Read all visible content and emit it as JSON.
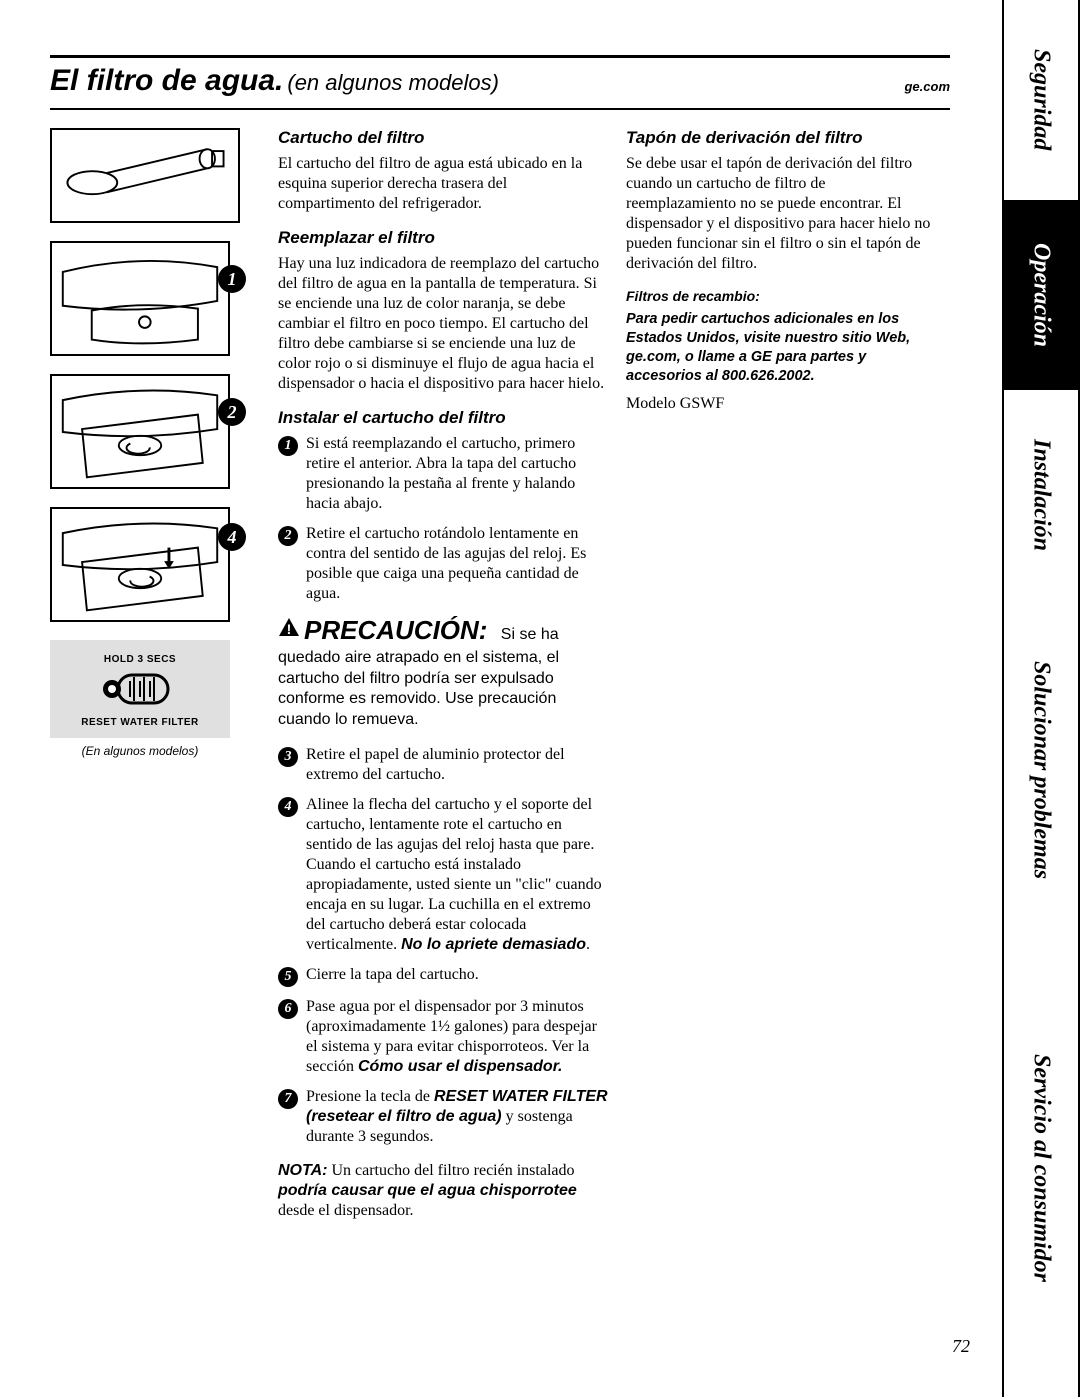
{
  "title": {
    "main": "El filtro de agua.",
    "sub": "(en algunos modelos)",
    "url": "ge.com"
  },
  "tabs": [
    "Seguridad",
    "Operación",
    "Instalación",
    "Solucionar problemas",
    "Servicio al consumidor"
  ],
  "tab_heights": [
    200,
    190,
    210,
    340,
    457
  ],
  "tab_active_index": 1,
  "page_number": "72",
  "left": {
    "badges": [
      "1",
      "2",
      "4"
    ],
    "reset_hold": "HOLD 3 SECS",
    "reset_label": "RESET WATER FILTER",
    "reset_caption": "(En algunos modelos)"
  },
  "mid": {
    "h_cartucho": "Cartucho del filtro",
    "p_cartucho": "El cartucho del filtro de agua está ubicado en la esquina superior derecha trasera del compartimento del refrigerador.",
    "h_reemplazar": "Reemplazar el filtro",
    "p_reemplazar": "Hay una luz indicadora de reemplazo del cartucho del filtro de agua en la pantalla de temperatura. Si se enciende una luz de color naranja, se debe cambiar el filtro en poco tiempo. El cartucho del filtro debe cambiarse si se enciende una luz de color rojo o si disminuye el flujo de agua hacia el dispensador o hacia el dispositivo para hacer hielo.",
    "h_instalar": "Instalar el cartucho del filtro",
    "step1": "Si está reemplazando el cartucho, primero retire el anterior. Abra la tapa del cartucho presionando la pestaña al frente y halando hacia abajo.",
    "step2": "Retire el cartucho rotándolo lentamente en contra del sentido de las agujas del reloj. Es posible que caiga una pequeña cantidad de agua.",
    "caution_word": "PRECAUCIÓN:",
    "caution_lead": "Si se ha",
    "caution_body": "quedado aire atrapado en el sistema, el cartucho del filtro podría ser expulsado conforme es removido. Use precaución cuando lo remueva.",
    "step3": "Retire el papel de aluminio protector del extremo del cartucho.",
    "step4_a": "Alinee la flecha del cartucho y el soporte del cartucho, lentamente rote el cartucho en sentido de las agujas del reloj hasta que pare. Cuando el cartucho está instalado apropiadamente, usted siente un \"clic\" cuando encaja en su lugar. La cuchilla en el extremo del cartucho deberá estar colocada verticalmente. ",
    "step4_b": "No lo apriete demasiado",
    "step5": "Cierre la tapa del cartucho.",
    "step6_a": "Pase agua por el dispensador por 3 minutos (aproximadamente 1½ galones) para despejar el sistema y para evitar chisporroteos. Ver la sección ",
    "step6_b": "Cómo usar el dispensador.",
    "step7_a": "Presione la tecla de ",
    "step7_b": "RESET WATER FILTER (resetear el filtro de agua)",
    "step7_c": " y sostenga durante 3 segundos.",
    "nota_label": "NOTA:",
    "nota_a": " Un cartucho del filtro recién instalado ",
    "nota_b": "podría causar que el agua chisporrotee",
    "nota_c": " desde el dispensador."
  },
  "right": {
    "h_tapon": "Tapón de derivación del filtro",
    "p_tapon": "Se debe usar el tapón de derivación del filtro cuando un cartucho de filtro de reemplazamiento no se puede encontrar. El dispensador y el dispositivo para hacer hielo no pueden funcionar sin el filtro o sin el tapón de derivación del filtro.",
    "h_filtros": "Filtros de recambio:",
    "p_filtros": "Para pedir cartuchos adicionales en los Estados Unidos, visite nuestro sitio Web, ge.com, o llame a GE para partes y accesorios al 800.626.2002.",
    "modelo": "Modelo GSWF"
  }
}
